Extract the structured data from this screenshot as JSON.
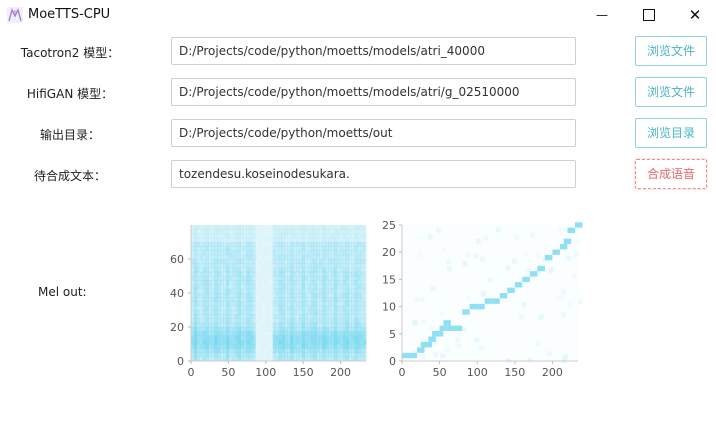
{
  "window": {
    "title": "MoeTTS-CPU",
    "minimize": "—",
    "close": "✕"
  },
  "form": {
    "rows": [
      {
        "label": "Tacotron2 模型：",
        "value": "D:/Projects/code/python/moetts/models/atri_40000",
        "button": "浏览文件"
      },
      {
        "label": "HifiGAN 模型：",
        "value": "D:/Projects/code/python/moetts/models/atri/g_02510000",
        "button": "浏览文件"
      },
      {
        "label": "输出目录：",
        "value": "D:/Projects/code/python/moetts/out",
        "button": "浏览目录"
      },
      {
        "label": "待合成文本：",
        "value": "tozendesu.koseinodesukara.",
        "button": "合成语音"
      }
    ]
  },
  "mel": {
    "label": "Mel out:"
  },
  "chart_data": [
    {
      "type": "heatmap",
      "title": "",
      "xlabel": "",
      "ylabel": "",
      "xlim": [
        0,
        234
      ],
      "ylim": [
        0,
        80
      ],
      "x_ticks": [
        "0",
        "50",
        "100",
        "150",
        "200"
      ],
      "y_ticks": [
        "0",
        "20",
        "40",
        "60"
      ],
      "colormap": [
        "#ffffff",
        "#a8e6f4"
      ],
      "note_values": "mel spectrogram frames x 80 mel bins; blank gap near frames 85-105"
    },
    {
      "type": "heatmap",
      "title": "",
      "xlabel": "",
      "ylabel": "",
      "xlim": [
        0,
        234
      ],
      "ylim": [
        0,
        25
      ],
      "x_ticks": [
        "0",
        "50",
        "100",
        "150",
        "200"
      ],
      "y_ticks": [
        "0",
        "5",
        "10",
        "15",
        "20",
        "25"
      ],
      "colormap": [
        "#ffffff",
        "#9fe3f2"
      ],
      "alignment_path": [
        [
          0,
          1
        ],
        [
          10,
          1
        ],
        [
          20,
          2
        ],
        [
          25,
          3
        ],
        [
          30,
          3
        ],
        [
          35,
          4
        ],
        [
          40,
          5
        ],
        [
          45,
          5
        ],
        [
          50,
          6
        ],
        [
          55,
          7
        ],
        [
          60,
          6
        ],
        [
          70,
          6
        ],
        [
          80,
          9
        ],
        [
          90,
          10
        ],
        [
          100,
          10
        ],
        [
          110,
          11
        ],
        [
          120,
          11
        ],
        [
          130,
          12
        ],
        [
          140,
          13
        ],
        [
          150,
          14
        ],
        [
          160,
          15
        ],
        [
          170,
          16
        ],
        [
          180,
          17
        ],
        [
          190,
          19
        ],
        [
          200,
          20
        ],
        [
          210,
          21
        ],
        [
          215,
          22
        ],
        [
          220,
          24
        ],
        [
          230,
          25
        ]
      ]
    }
  ]
}
